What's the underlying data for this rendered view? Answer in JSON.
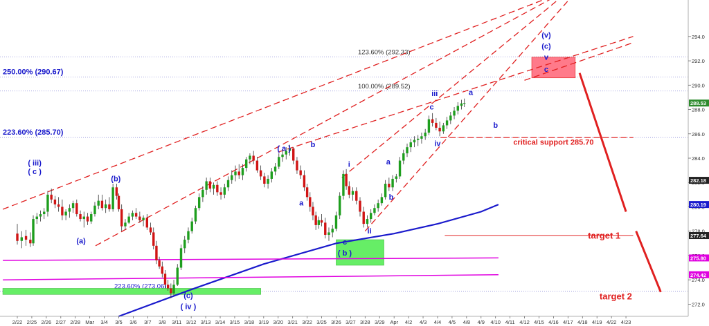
{
  "chart_data": {
    "type": "candlestick",
    "ylim": [
      271.0,
      297.0
    ],
    "y_ticks": [
      272.0,
      274.0,
      276.0,
      278.0,
      280.0,
      282.0,
      284.0,
      286.0,
      288.0,
      290.0,
      292.0,
      294.0
    ],
    "x_dates": [
      "2/22",
      "2/25",
      "2/26",
      "2/27",
      "2/28",
      "Mar",
      "3/4",
      "3/5",
      "3/6",
      "3/7",
      "3/8",
      "3/11",
      "3/12",
      "3/13",
      "3/14",
      "3/15",
      "3/18",
      "3/19",
      "3/20",
      "3/21",
      "3/22",
      "3/25",
      "3/26",
      "3/27",
      "3/28",
      "3/29",
      "Apr",
      "4/2",
      "4/3",
      "4/4",
      "4/5",
      "4/8",
      "4/9",
      "4/10",
      "4/11",
      "4/12",
      "4/15",
      "4/16",
      "4/17",
      "4/18",
      "4/19",
      "4/22",
      "4/23"
    ],
    "price_labels": [
      {
        "value": 288.53,
        "text": "288.53",
        "color": "#2e8b2e"
      },
      {
        "value": 282.18,
        "text": "282.18",
        "color": "#222222"
      },
      {
        "value": 280.19,
        "text": "280.19",
        "color": "#1a1acc"
      },
      {
        "value": 277.64,
        "text": "277.64",
        "color": "#222222"
      },
      {
        "value": 275.8,
        "text": "275.80",
        "color": "#e000e0"
      },
      {
        "value": 274.42,
        "text": "274.42",
        "color": "#e000e0"
      }
    ],
    "fib_levels": [
      {
        "value": 292.33,
        "text": "123.60% (292.33)",
        "color": "#333333"
      },
      {
        "value": 290.67,
        "text": "250.00% (290.67)",
        "color": "#1a1acc"
      },
      {
        "value": 289.52,
        "text": "100.00% (289.52)",
        "color": "#333333"
      },
      {
        "value": 285.7,
        "text": "223.60% (285.70)",
        "color": "#1a1acc"
      },
      {
        "value": 273.06,
        "text": "223.60% (273.06)",
        "color": "#1a1acc"
      }
    ],
    "wave_labels": [
      {
        "text": "( iii)",
        "date": 1.2,
        "value": 283.4
      },
      {
        "text": "( c )",
        "date": 1.2,
        "value": 282.7
      },
      {
        "text": "(b)",
        "date": 6.8,
        "value": 282.1
      },
      {
        "text": "(a)",
        "date": 4.4,
        "value": 277.0
      },
      {
        "text": "(c)",
        "date": 11.8,
        "value": 272.5
      },
      {
        "text": "( iv )",
        "date": 11.8,
        "value": 271.6
      },
      {
        "text": "( a )",
        "date": 18.4,
        "value": 284.6
      },
      {
        "text": "b",
        "date": 20.4,
        "value": 284.9
      },
      {
        "text": "a",
        "date": 19.6,
        "value": 280.1
      },
      {
        "text": "i",
        "date": 22.9,
        "value": 283.3
      },
      {
        "text": "c",
        "date": 22.6,
        "value": 276.9
      },
      {
        "text": "( b )",
        "date": 22.6,
        "value": 276.0
      },
      {
        "text": "ii",
        "date": 24.3,
        "value": 277.8
      },
      {
        "text": "a",
        "date": 25.6,
        "value": 283.5
      },
      {
        "text": "b",
        "date": 25.8,
        "value": 280.6
      },
      {
        "text": "iii",
        "date": 28.8,
        "value": 289.1
      },
      {
        "text": "c",
        "date": 28.6,
        "value": 288.0
      },
      {
        "text": "iv",
        "date": 29.0,
        "value": 285.0
      },
      {
        "text": "a",
        "date": 31.3,
        "value": 289.2
      },
      {
        "text": "b",
        "date": 33.0,
        "value": 286.5
      },
      {
        "text": "(v)",
        "date": 36.5,
        "value": 293.9
      },
      {
        "text": "(c)",
        "date": 36.5,
        "value": 293.0
      },
      {
        "text": "v",
        "date": 36.5,
        "value": 292.1
      },
      {
        "text": "c",
        "date": 36.5,
        "value": 291.1
      }
    ],
    "annotations": [
      {
        "text": "critical support 285.70",
        "date": 37.0,
        "value": 285.1,
        "color": "#e02020"
      },
      {
        "text": "target 1",
        "date": 40.5,
        "value": 277.4,
        "color": "#e02020"
      },
      {
        "text": "target 2",
        "date": 41.3,
        "value": 272.4,
        "color": "#e02020"
      }
    ],
    "candles": [
      [
        0.0,
        277.8,
        278.6,
        276.9,
        277.2
      ],
      [
        0.3,
        277.2,
        278.0,
        276.6,
        277.5
      ],
      [
        0.6,
        277.6,
        278.1,
        276.8,
        277.3
      ],
      [
        0.9,
        277.3,
        277.9,
        276.7,
        277.0
      ],
      [
        1.1,
        277.0,
        279.3,
        276.8,
        279.0
      ],
      [
        1.35,
        279.0,
        279.5,
        278.6,
        279.2
      ],
      [
        1.6,
        279.2,
        279.7,
        278.8,
        279.4
      ],
      [
        1.85,
        279.4,
        279.9,
        279.0,
        279.6
      ],
      [
        2.1,
        279.6,
        281.3,
        279.2,
        281.0
      ],
      [
        2.35,
        281.0,
        281.5,
        280.3,
        280.6
      ],
      [
        2.6,
        280.6,
        280.9,
        279.9,
        280.2
      ],
      [
        2.85,
        280.2,
        280.8,
        279.6,
        280.0
      ],
      [
        3.1,
        280.0,
        280.6,
        278.9,
        279.3
      ],
      [
        3.35,
        279.3,
        279.8,
        278.9,
        279.6
      ],
      [
        3.6,
        279.6,
        280.2,
        279.1,
        279.9
      ],
      [
        3.85,
        279.9,
        280.5,
        279.5,
        280.3
      ],
      [
        4.1,
        280.3,
        280.6,
        279.2,
        279.4
      ],
      [
        4.35,
        279.4,
        279.7,
        278.8,
        279.0
      ],
      [
        4.6,
        279.0,
        279.6,
        278.3,
        279.2
      ],
      [
        4.85,
        279.2,
        279.5,
        278.5,
        278.8
      ],
      [
        5.1,
        278.8,
        279.6,
        278.6,
        279.4
      ],
      [
        5.35,
        279.4,
        280.4,
        279.2,
        280.1
      ],
      [
        5.6,
        280.1,
        281.0,
        279.8,
        280.5
      ],
      [
        5.85,
        280.5,
        281.0,
        279.7,
        279.9
      ],
      [
        6.1,
        279.9,
        280.6,
        279.5,
        280.2
      ],
      [
        6.35,
        280.2,
        280.8,
        279.6,
        279.8
      ],
      [
        6.6,
        279.8,
        281.9,
        279.6,
        281.6
      ],
      [
        6.85,
        281.6,
        281.9,
        280.6,
        280.9
      ],
      [
        7.0,
        280.9,
        281.1,
        279.6,
        279.8
      ],
      [
        7.2,
        279.8,
        280.2,
        278.0,
        278.4
      ],
      [
        7.45,
        278.4,
        279.0,
        278.1,
        278.7
      ],
      [
        7.7,
        278.7,
        279.5,
        278.6,
        279.2
      ],
      [
        7.95,
        279.2,
        279.7,
        278.9,
        279.5
      ],
      [
        8.2,
        279.5,
        279.9,
        279.0,
        279.2
      ],
      [
        8.45,
        279.2,
        279.6,
        278.7,
        278.9
      ],
      [
        8.7,
        278.9,
        279.3,
        278.4,
        279.1
      ],
      [
        8.95,
        279.1,
        279.4,
        278.1,
        278.3
      ],
      [
        9.2,
        278.3,
        278.7,
        277.7,
        277.9
      ],
      [
        9.4,
        277.9,
        278.3,
        276.5,
        276.8
      ],
      [
        9.6,
        276.8,
        277.2,
        275.3,
        275.6
      ],
      [
        9.8,
        275.6,
        275.9,
        274.9,
        275.1
      ],
      [
        10.0,
        275.1,
        275.5,
        274.2,
        274.5
      ],
      [
        10.2,
        274.5,
        274.8,
        273.3,
        273.6
      ],
      [
        10.4,
        273.6,
        274.0,
        273.1,
        273.3
      ],
      [
        10.6,
        273.3,
        273.7,
        272.5,
        272.9
      ],
      [
        10.8,
        272.9,
        274.0,
        272.7,
        273.6
      ],
      [
        11.05,
        273.6,
        275.3,
        273.5,
        275.0
      ],
      [
        11.3,
        275.0,
        276.9,
        274.8,
        276.6
      ],
      [
        11.55,
        276.6,
        277.6,
        276.2,
        277.3
      ],
      [
        11.8,
        277.3,
        278.3,
        277.0,
        278.0
      ],
      [
        12.05,
        278.0,
        279.1,
        277.8,
        278.8
      ],
      [
        12.3,
        278.8,
        280.1,
        278.6,
        279.9
      ],
      [
        12.55,
        279.9,
        281.1,
        279.7,
        280.8
      ],
      [
        12.8,
        280.8,
        281.7,
        280.4,
        281.4
      ],
      [
        13.05,
        281.4,
        282.4,
        281.0,
        282.1
      ],
      [
        13.3,
        282.1,
        282.4,
        281.2,
        281.5
      ],
      [
        13.55,
        281.5,
        282.0,
        281.0,
        281.8
      ],
      [
        13.8,
        281.8,
        282.1,
        280.9,
        281.2
      ],
      [
        14.05,
        281.2,
        281.6,
        280.6,
        281.0
      ],
      [
        14.3,
        281.0,
        281.9,
        280.7,
        281.6
      ],
      [
        14.55,
        281.6,
        282.5,
        281.3,
        282.2
      ],
      [
        14.8,
        282.2,
        283.0,
        281.9,
        282.6
      ],
      [
        15.05,
        282.6,
        283.4,
        282.1,
        282.9
      ],
      [
        15.3,
        282.9,
        283.5,
        282.3,
        282.6
      ],
      [
        15.55,
        282.6,
        283.5,
        282.2,
        283.2
      ],
      [
        15.8,
        283.2,
        284.1,
        282.9,
        283.9
      ],
      [
        16.05,
        283.9,
        284.4,
        283.5,
        284.2
      ],
      [
        16.3,
        284.2,
        284.6,
        283.5,
        283.8
      ],
      [
        16.55,
        283.8,
        284.1,
        282.8,
        283.0
      ],
      [
        16.8,
        283.0,
        283.4,
        282.2,
        282.5
      ],
      [
        17.05,
        282.5,
        282.8,
        281.6,
        281.9
      ],
      [
        17.3,
        281.9,
        282.6,
        281.5,
        282.3
      ],
      [
        17.55,
        282.3,
        283.2,
        282.0,
        282.9
      ],
      [
        17.8,
        282.9,
        283.6,
        282.6,
        283.3
      ],
      [
        18.05,
        283.3,
        284.4,
        283.1,
        284.1
      ],
      [
        18.3,
        284.1,
        284.7,
        283.7,
        284.3
      ],
      [
        18.55,
        284.3,
        284.9,
        283.9,
        284.6
      ],
      [
        18.8,
        284.6,
        285.1,
        284.2,
        284.8
      ],
      [
        19.05,
        284.8,
        284.9,
        283.5,
        283.8
      ],
      [
        19.3,
        283.8,
        284.1,
        282.7,
        283.0
      ],
      [
        19.55,
        283.0,
        283.4,
        282.3,
        282.6
      ],
      [
        19.8,
        282.6,
        283.0,
        281.3,
        281.6
      ],
      [
        20.0,
        281.6,
        281.9,
        280.5,
        280.8
      ],
      [
        20.2,
        280.8,
        281.2,
        279.6,
        280.0
      ],
      [
        20.4,
        280.0,
        280.4,
        278.9,
        279.3
      ],
      [
        20.6,
        279.3,
        279.6,
        278.1,
        278.5
      ],
      [
        20.8,
        278.5,
        279.2,
        278.2,
        278.9
      ],
      [
        21.0,
        278.9,
        279.4,
        278.4,
        278.7
      ],
      [
        21.25,
        278.7,
        279.1,
        277.4,
        277.7
      ],
      [
        21.5,
        277.7,
        278.3,
        277.2,
        277.9
      ],
      [
        21.75,
        277.9,
        278.5,
        277.5,
        278.2
      ],
      [
        22.0,
        278.2,
        279.6,
        278.0,
        279.3
      ],
      [
        22.25,
        279.3,
        281.2,
        279.0,
        280.9
      ],
      [
        22.5,
        280.9,
        283.0,
        280.6,
        282.7
      ],
      [
        22.7,
        282.7,
        283.1,
        281.4,
        281.7
      ],
      [
        22.9,
        281.7,
        282.1,
        280.7,
        281.0
      ],
      [
        23.15,
        281.0,
        281.6,
        280.5,
        281.3
      ],
      [
        23.4,
        281.3,
        281.6,
        280.2,
        280.5
      ],
      [
        23.65,
        280.5,
        280.8,
        279.2,
        279.6
      ],
      [
        23.9,
        279.6,
        280.0,
        278.3,
        278.6
      ],
      [
        24.15,
        278.6,
        279.3,
        278.3,
        279.0
      ],
      [
        24.4,
        279.0,
        279.8,
        278.7,
        279.5
      ],
      [
        24.65,
        279.5,
        280.2,
        279.3,
        279.9
      ],
      [
        24.9,
        279.9,
        280.6,
        279.6,
        280.3
      ],
      [
        25.15,
        280.3,
        281.1,
        280.1,
        280.8
      ],
      [
        25.4,
        280.8,
        282.2,
        280.6,
        281.9
      ],
      [
        25.65,
        281.9,
        282.4,
        281.3,
        281.6
      ],
      [
        25.9,
        281.6,
        282.6,
        281.3,
        282.3
      ],
      [
        26.15,
        282.3,
        282.7,
        282.0,
        282.5
      ],
      [
        26.4,
        282.5,
        284.1,
        282.3,
        283.8
      ],
      [
        26.65,
        283.8,
        284.7,
        283.5,
        284.4
      ],
      [
        26.9,
        284.4,
        285.2,
        284.1,
        284.9
      ],
      [
        27.15,
        284.9,
        285.6,
        284.5,
        285.3
      ],
      [
        27.4,
        285.3,
        285.8,
        284.9,
        285.5
      ],
      [
        27.65,
        285.5,
        285.9,
        285.0,
        285.6
      ],
      [
        27.9,
        285.6,
        286.1,
        285.2,
        285.8
      ],
      [
        28.15,
        285.8,
        286.4,
        285.5,
        286.1
      ],
      [
        28.4,
        286.1,
        287.5,
        285.9,
        287.2
      ],
      [
        28.65,
        287.2,
        287.7,
        286.6,
        286.9
      ],
      [
        28.9,
        286.9,
        287.3,
        286.3,
        286.5
      ],
      [
        29.15,
        286.5,
        287.0,
        285.8,
        286.2
      ],
      [
        29.4,
        286.2,
        286.9,
        286.0,
        286.7
      ],
      [
        29.65,
        286.7,
        287.4,
        286.4,
        287.1
      ],
      [
        29.9,
        287.1,
        287.8,
        286.8,
        287.5
      ],
      [
        30.15,
        287.5,
        288.2,
        287.2,
        287.9
      ],
      [
        30.4,
        287.9,
        288.6,
        287.6,
        288.3
      ],
      [
        30.65,
        288.3,
        288.8,
        288.0,
        288.5
      ],
      [
        30.85,
        288.5,
        288.9,
        288.2,
        288.53
      ]
    ],
    "lines": [
      {
        "color": "#e02020",
        "dash": "9,5",
        "width": 1.3,
        "points": [
          [
            -1,
            279.8
          ],
          [
            36.7,
            297.2
          ]
        ]
      },
      {
        "color": "#e02020",
        "dash": "9,5",
        "width": 1.3,
        "points": [
          [
            5.4,
            276.8
          ],
          [
            37.0,
            297.2
          ]
        ]
      },
      {
        "color": "#e02020",
        "dash": "9,5",
        "width": 1.3,
        "points": [
          [
            18.0,
            284.5
          ],
          [
            42.5,
            294.0
          ]
        ]
      },
      {
        "color": "#e02020",
        "dash": "9,5",
        "width": 1.3,
        "points": [
          [
            22.4,
            282.4
          ],
          [
            37.5,
            297.2
          ]
        ]
      },
      {
        "color": "#e02020",
        "dash": "9,5",
        "width": 1.3,
        "points": [
          [
            24.0,
            278.0
          ],
          [
            38.2,
            297.2
          ]
        ]
      },
      {
        "color": "#e02020",
        "dash": "9,5",
        "width": 1.3,
        "points": [
          [
            35.0,
            290.4
          ],
          [
            42.5,
            293.5
          ]
        ]
      },
      {
        "color": "#e02020",
        "dash": "9,4",
        "width": 1.3,
        "points": [
          [
            29.2,
            285.7
          ],
          [
            42.5,
            285.7
          ]
        ]
      },
      {
        "color": "#1a1acc",
        "dash": "",
        "width": 2.2,
        "points": [
          [
            7.0,
            271.0
          ],
          [
            12.0,
            273.2
          ],
          [
            17.0,
            275.3
          ],
          [
            22.0,
            277.0
          ],
          [
            26.0,
            277.8
          ],
          [
            29.0,
            278.6
          ],
          [
            32.0,
            279.6
          ],
          [
            33.2,
            280.19
          ]
        ]
      },
      {
        "color": "#e000e0",
        "dash": "",
        "width": 1.5,
        "points": [
          [
            -1,
            275.6
          ],
          [
            33.2,
            275.8
          ]
        ]
      },
      {
        "color": "#e000e0",
        "dash": "",
        "width": 1.5,
        "points": [
          [
            -1,
            274.0
          ],
          [
            33.2,
            274.42
          ]
        ]
      },
      {
        "color": "#e02020",
        "dash": "",
        "width": 0.9,
        "points": [
          [
            29.5,
            277.64
          ],
          [
            42.5,
            277.64
          ]
        ]
      },
      {
        "color": "#e02020",
        "dash": "",
        "width": 3,
        "points": [
          [
            38.8,
            291.0
          ],
          [
            42.0,
            279.6
          ]
        ]
      },
      {
        "color": "#e02020",
        "dash": "",
        "width": 3,
        "points": [
          [
            42.7,
            278.0
          ],
          [
            44.4,
            273.0
          ]
        ]
      }
    ],
    "boxes": [
      {
        "x0": -1,
        "x1": 16.8,
        "y0": 273.3,
        "y1": 272.8,
        "color": "#66ee66"
      },
      {
        "x0": 22.0,
        "x1": 25.3,
        "y0": 277.3,
        "y1": 275.2,
        "color": "#66ee66"
      },
      {
        "x0": 35.5,
        "x1": 38.5,
        "y0": 292.3,
        "y1": 290.6,
        "color": "#ff7a8a"
      }
    ]
  }
}
